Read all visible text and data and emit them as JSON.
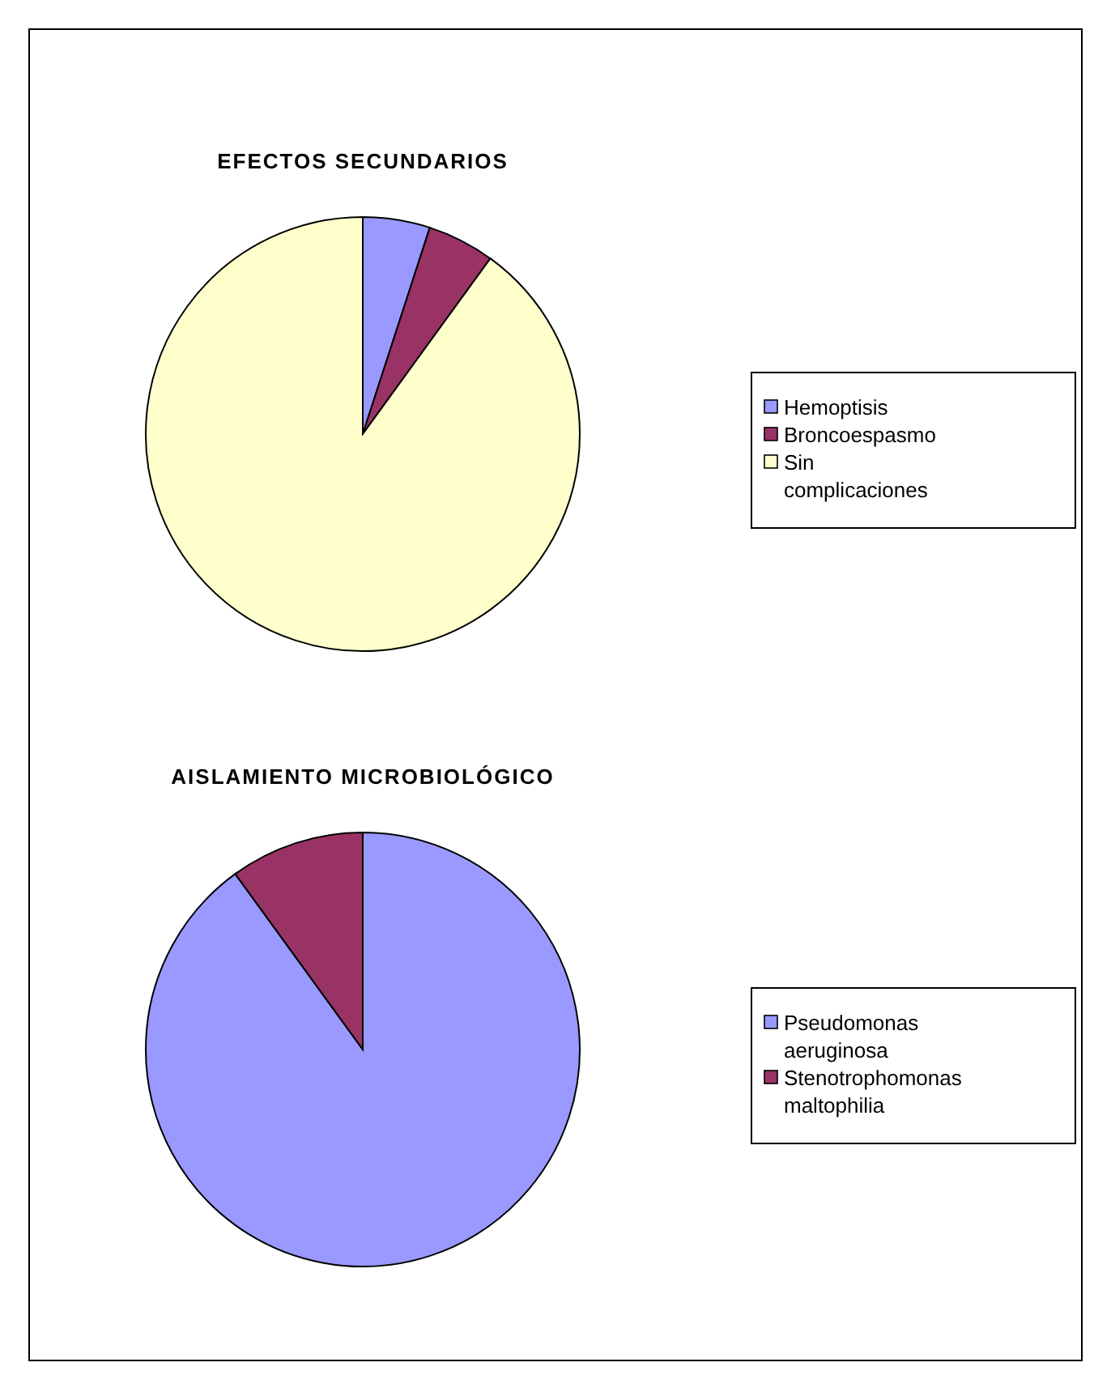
{
  "chart_data": [
    {
      "type": "pie",
      "title": "EFECTOS SECUNDARIOS",
      "categories": [
        "Hemoptisis",
        "Broncoespasmo",
        "Sin complicaciones"
      ],
      "values": [
        5,
        5,
        90
      ],
      "colors": [
        "#9999ff",
        "#993366",
        "#ffffcc"
      ],
      "legend": "right"
    },
    {
      "type": "pie",
      "title": "AISLAMIENTO MICROBIOLÓGICO",
      "categories": [
        "Pseudomonas aeruginosa",
        "Stenotrophomonas maltophilia"
      ],
      "values": [
        90,
        10
      ],
      "colors": [
        "#9999ff",
        "#993366"
      ],
      "legend": "right"
    }
  ]
}
